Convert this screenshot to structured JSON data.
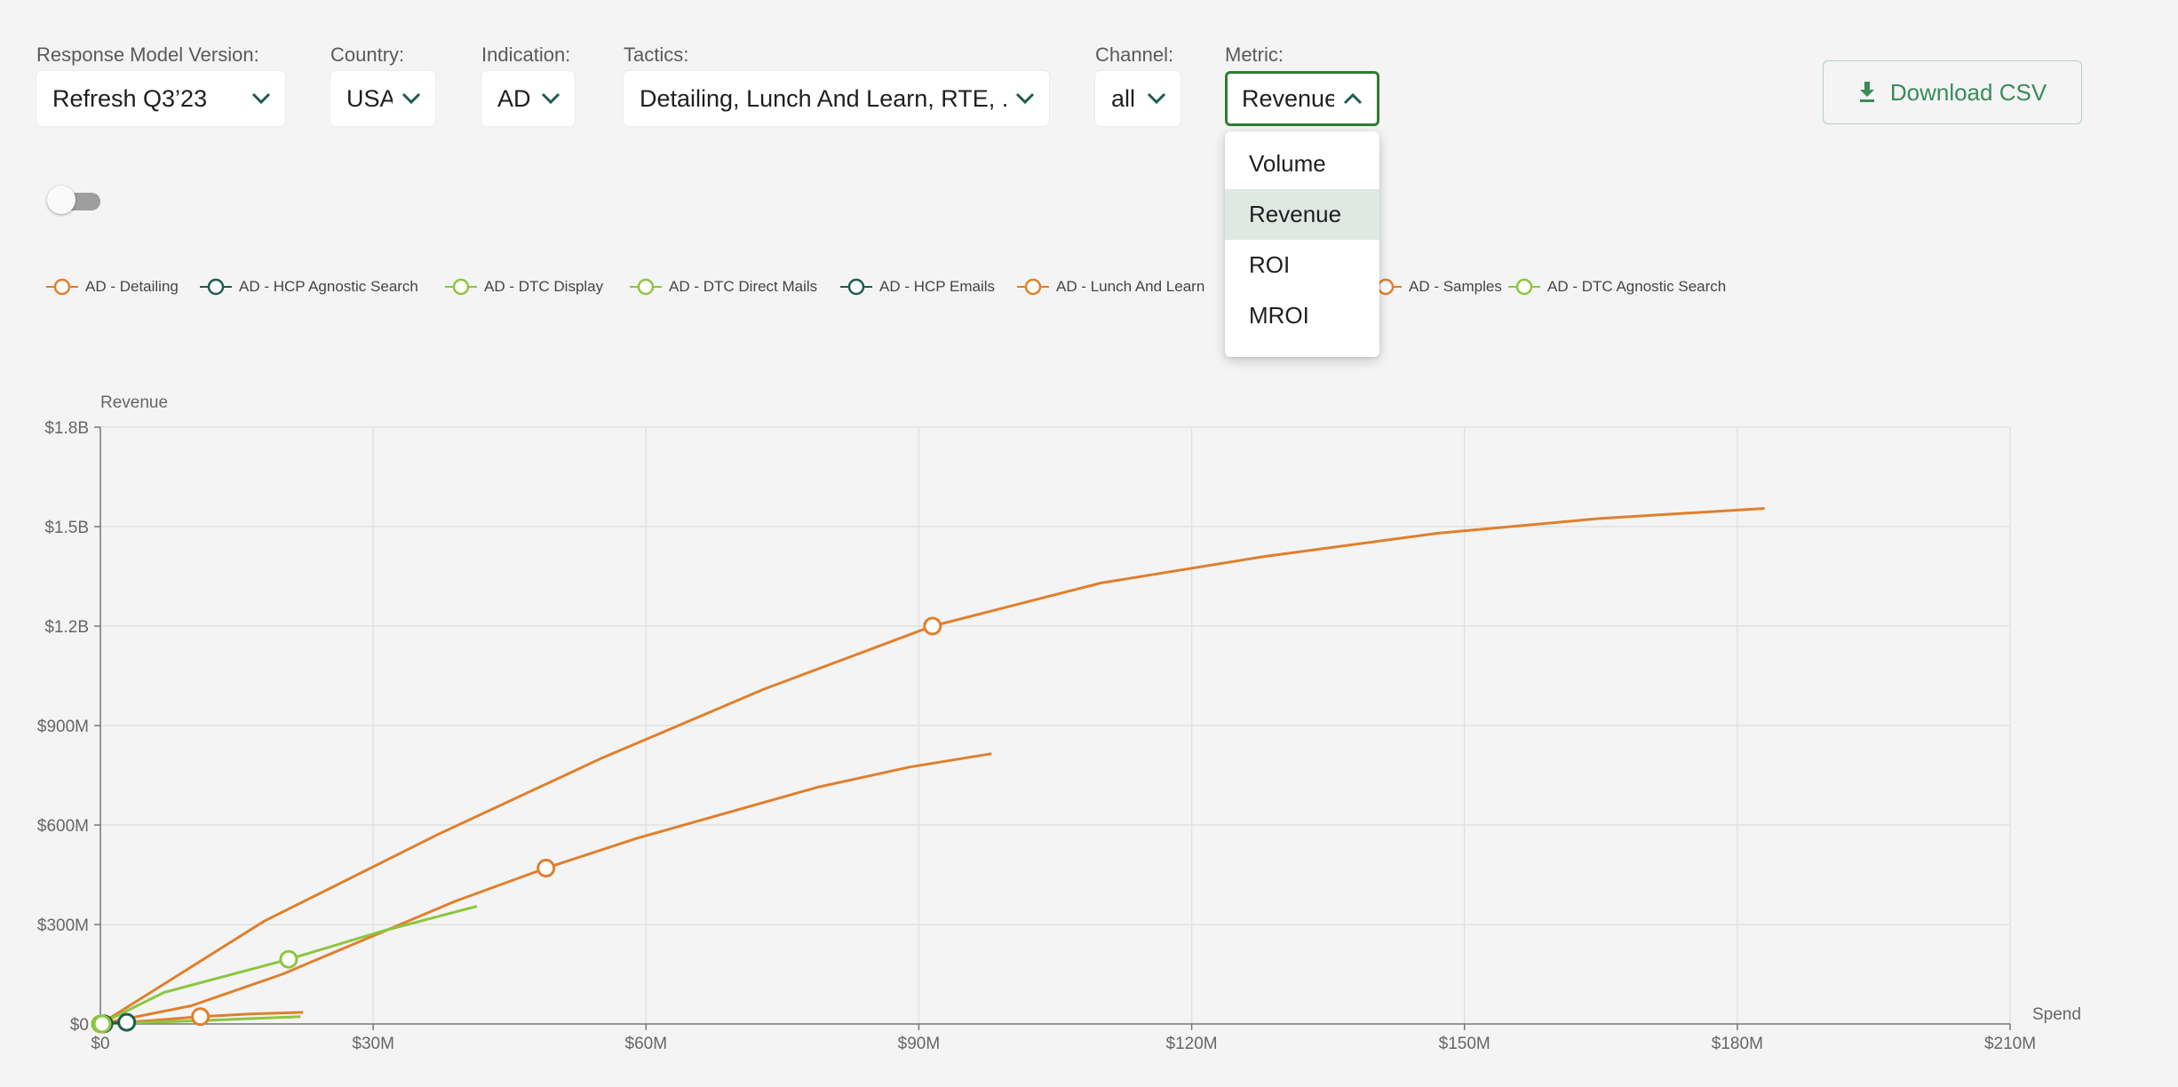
{
  "filters": {
    "model_version": {
      "label": "Response Model Version:",
      "value": "Refresh Q3’23"
    },
    "country": {
      "label": "Country:",
      "value": "USA"
    },
    "indication": {
      "label": "Indication:",
      "value": "AD"
    },
    "tactics": {
      "label": "Tactics:",
      "value": "Detailing, Lunch And Learn, RTE, ..."
    },
    "channel": {
      "label": "Channel:",
      "value": "all"
    },
    "metric": {
      "label": "Metric:",
      "value": "Revenue",
      "options": [
        "Volume",
        "Revenue",
        "ROI",
        "MROI"
      ]
    }
  },
  "download_label": "Download CSV",
  "colors": {
    "accent": "#2e7d32",
    "orange": "#e07f2c",
    "dark_green": "#1f5c4d",
    "light_green": "#8cc63f"
  },
  "chart_data": {
    "type": "line",
    "title": "",
    "xlabel": "Spend",
    "ylabel": "Revenue",
    "xlim": [
      0,
      210000000
    ],
    "ylim": [
      0,
      1800000000
    ],
    "x_ticks": [
      "$0",
      "$30M",
      "$60M",
      "$90M",
      "$120M",
      "$150M",
      "$180M",
      "$210M"
    ],
    "y_ticks": [
      "$0",
      "$300M",
      "$600M",
      "$900M",
      "$1.2B",
      "$1.5B",
      "$1.8B"
    ],
    "grid": true,
    "legend_position": "top",
    "legend": [
      {
        "name": "AD - Detailing",
        "color": "#e07f2c"
      },
      {
        "name": "AD - HCP Agnostic Search",
        "color": "#1f5c4d"
      },
      {
        "name": "AD - DTC Display",
        "color": "#8cc63f"
      },
      {
        "name": "AD - DTC Direct Mails",
        "color": "#8cc63f"
      },
      {
        "name": "AD - HCP Emails",
        "color": "#1f5c4d"
      },
      {
        "name": "AD - Lunch And Learn",
        "color": "#e07f2c"
      },
      {
        "name": "AD - Samples",
        "color": "#e07f2c"
      },
      {
        "name": "AD - DTC Agnostic Search",
        "color": "#8cc63f"
      }
    ],
    "series": [
      {
        "name": "AD - Detailing",
        "color": "#e07f2c",
        "points": [
          [
            0,
            0
          ],
          [
            18000000,
            310000000
          ],
          [
            37000000,
            570000000
          ],
          [
            55000000,
            800000000
          ],
          [
            73000000,
            1010000000
          ],
          [
            91500000,
            1200000000
          ],
          [
            110000000,
            1330000000
          ],
          [
            128000000,
            1410000000
          ],
          [
            147000000,
            1480000000
          ],
          [
            165000000,
            1525000000
          ],
          [
            183000000,
            1555000000
          ]
        ],
        "marker": [
          91500000,
          1200000000
        ]
      },
      {
        "name": "AD - Lunch And Learn",
        "color": "#e07f2c",
        "points": [
          [
            0,
            0
          ],
          [
            10000000,
            55000000
          ],
          [
            20000000,
            150000000
          ],
          [
            39000000,
            370000000
          ],
          [
            49000000,
            470000000
          ],
          [
            59000000,
            560000000
          ],
          [
            79000000,
            715000000
          ],
          [
            89000000,
            775000000
          ],
          [
            98000000,
            815000000
          ]
        ],
        "marker": [
          49000000,
          470000000
        ]
      },
      {
        "name": "AD - DTC Display",
        "color": "#8cc63f",
        "points": [
          [
            0,
            0
          ],
          [
            7000000,
            95000000
          ],
          [
            20700000,
            195000000
          ],
          [
            31000000,
            280000000
          ],
          [
            41400000,
            355000000
          ]
        ],
        "marker": [
          20700000,
          195000000
        ]
      },
      {
        "name": "AD - Samples",
        "color": "#e07f2c",
        "points": [
          [
            0,
            0
          ],
          [
            5500000,
            10000000
          ],
          [
            11000000,
            22000000
          ],
          [
            16500000,
            30000000
          ],
          [
            22300000,
            35000000
          ]
        ],
        "marker": [
          11000000,
          22000000
        ]
      },
      {
        "name": "AD - DTC Direct Mails",
        "color": "#8cc63f",
        "points": [
          [
            0,
            0
          ],
          [
            11000000,
            10000000
          ],
          [
            22000000,
            22000000
          ]
        ],
        "marker": [
          0,
          0
        ]
      },
      {
        "name": "AD - HCP Agnostic Search",
        "color": "#1f5c4d",
        "points": [
          [
            0,
            0
          ],
          [
            1500000,
            3000000
          ],
          [
            2900000,
            5000000
          ]
        ],
        "marker": [
          2900000,
          5000000
        ]
      },
      {
        "name": "AD - HCP Emails",
        "color": "#1f5c4d",
        "points": [
          [
            0,
            0
          ],
          [
            500000,
            1000000
          ]
        ],
        "marker": [
          400000,
          500000
        ]
      },
      {
        "name": "AD - DTC Agnostic Search",
        "color": "#8cc63f",
        "points": [
          [
            0,
            0
          ],
          [
            400000,
            1000000
          ]
        ],
        "marker": [
          200000,
          0
        ]
      }
    ]
  }
}
